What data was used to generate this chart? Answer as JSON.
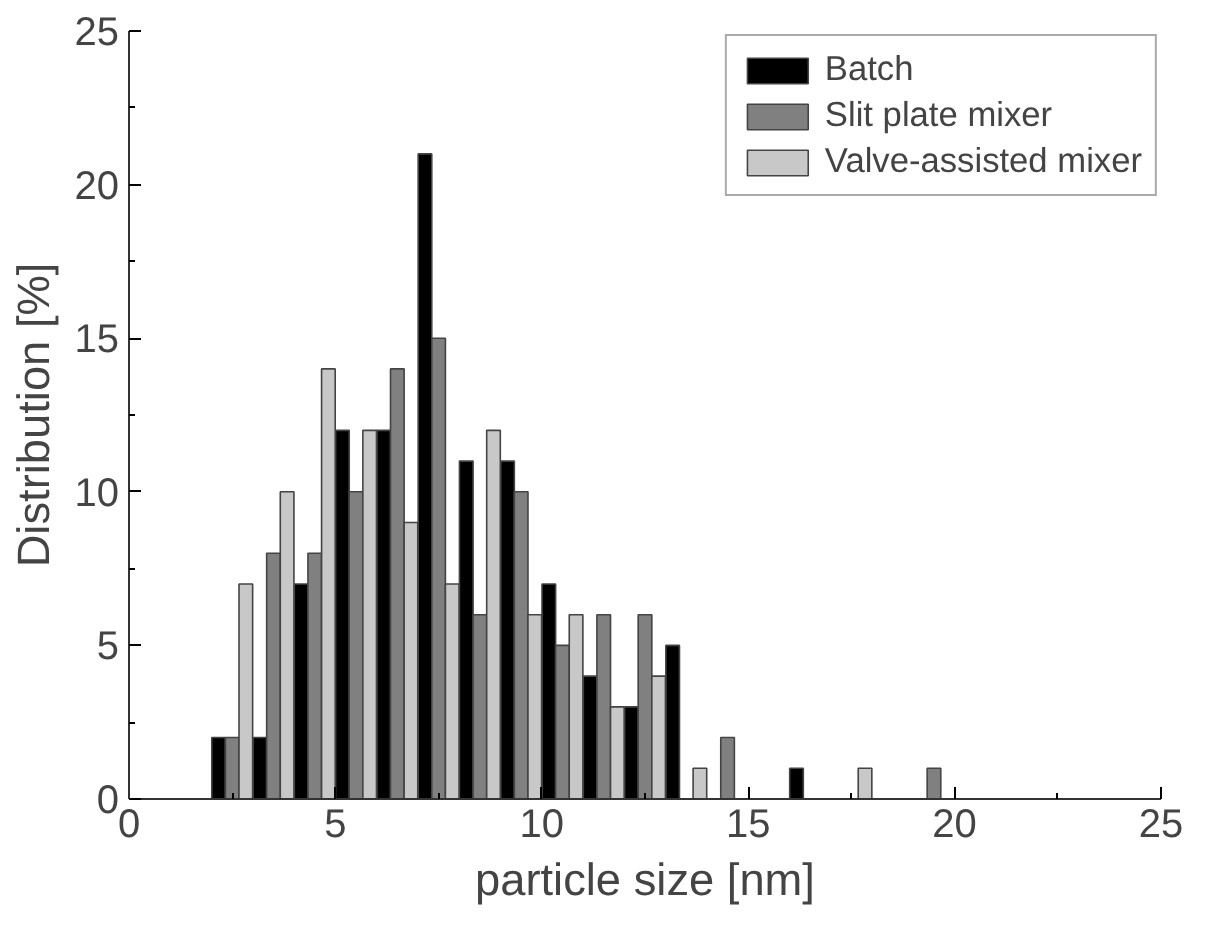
{
  "chart_data": {
    "type": "bar",
    "xlabel": "particle size [nm]",
    "ylabel": "Distribution [%]",
    "xlim": [
      0,
      25
    ],
    "xticks": [
      0,
      5,
      10,
      15,
      20,
      25
    ],
    "ylim": [
      0,
      25
    ],
    "yticks": [
      0,
      5,
      10,
      15,
      20,
      25
    ],
    "grid": false,
    "legend": "top right",
    "series": [
      {
        "name": "Batch",
        "color": "#000000",
        "x": [
          2.17,
          3.17,
          4.17,
          5.17,
          6.17,
          7.17,
          8.17,
          9.17,
          10.17,
          11.17,
          12.17,
          13.17,
          16.17
        ],
        "values": [
          2,
          2,
          7,
          12,
          12,
          21,
          11,
          11,
          7,
          4,
          3,
          5,
          1
        ]
      },
      {
        "name": "Slit plate mixer",
        "color": "#808080",
        "x": [
          2.5,
          3.5,
          4.5,
          5.5,
          6.5,
          7.5,
          8.5,
          9.5,
          10.5,
          11.5,
          12.5,
          14.5,
          19.5
        ],
        "values": [
          2,
          8,
          8,
          10,
          14,
          15,
          6,
          10,
          5,
          6,
          6,
          2,
          1
        ]
      },
      {
        "name": "Valve-assisted mixer",
        "color": "#c8c8c8",
        "x": [
          2.83,
          3.83,
          4.83,
          5.83,
          6.83,
          7.83,
          8.83,
          9.83,
          10.83,
          11.83,
          12.83,
          13.83,
          17.83
        ],
        "values": [
          7,
          10,
          14,
          12,
          9,
          7,
          12,
          6,
          6,
          3,
          4,
          1,
          1
        ]
      }
    ]
  }
}
